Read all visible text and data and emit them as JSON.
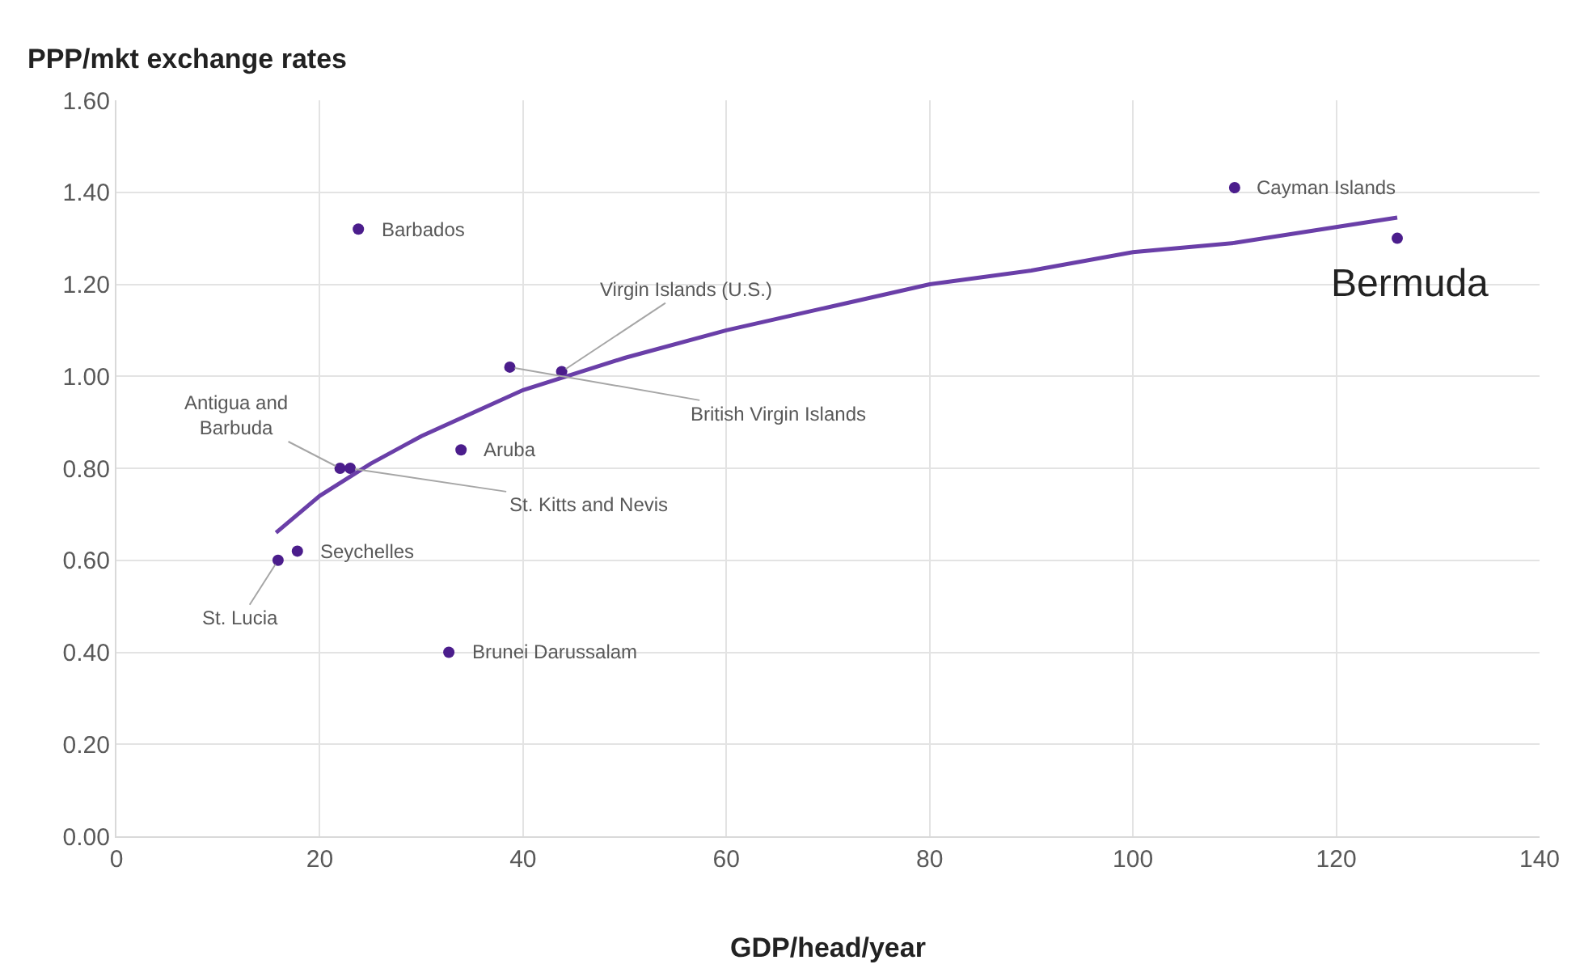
{
  "chart_data": {
    "type": "scatter",
    "ylabel": "PPP/mkt exchange rates",
    "xlabel": "GDP/head/year",
    "series": [
      {
        "color": "#4b1d8c",
        "marker": "circle",
        "x": [
          23.8,
          43.8,
          38.7,
          33.9,
          22.0,
          23.0,
          17.8,
          15.9,
          32.7,
          110.0,
          126.0
        ],
        "values": [
          1.32,
          1.01,
          1.02,
          0.84,
          0.8,
          0.8,
          0.62,
          0.6,
          0.4,
          1.41,
          1.3
        ]
      },
      {
        "type": "line",
        "color": "#6a3fa8",
        "marker": "none",
        "x": [
          15.7,
          20,
          25,
          30,
          40,
          50,
          60,
          70,
          80,
          90,
          100,
          110,
          126
        ],
        "values": [
          0.66,
          0.74,
          0.81,
          0.87,
          0.97,
          1.04,
          1.1,
          1.15,
          1.2,
          1.23,
          1.27,
          1.29,
          1.345
        ]
      }
    ],
    "annotations": [
      {
        "text": "Barbados",
        "x": 23.8,
        "y": 1.32
      },
      {
        "text": "Virgin Islands (U.S.)",
        "x": 43.8,
        "y": 1.01
      },
      {
        "text": "British Virgin Islands",
        "x": 38.7,
        "y": 1.02
      },
      {
        "text": "Aruba",
        "x": 33.9,
        "y": 0.84
      },
      {
        "text": "Antigua and\nBarbuda",
        "x": 22.0,
        "y": 0.8
      },
      {
        "text": "St. Kitts and Nevis",
        "x": 23.0,
        "y": 0.8
      },
      {
        "text": "Seychelles",
        "x": 17.8,
        "y": 0.62
      },
      {
        "text": "St. Lucia",
        "x": 15.9,
        "y": 0.6
      },
      {
        "text": "Brunei Darussalam",
        "x": 32.7,
        "y": 0.4
      },
      {
        "text": "Cayman Islands",
        "x": 110.0,
        "y": 1.41
      },
      {
        "text": "Bermuda",
        "x": 126.0,
        "y": 1.3
      }
    ],
    "xlim": [
      0,
      140
    ],
    "xticks": [
      0,
      20,
      40,
      60,
      80,
      100,
      120,
      140
    ],
    "ylim": [
      0,
      1.6
    ],
    "yticks": [
      {
        "value": 0,
        "label": "0.00"
      },
      {
        "value": 0.2,
        "label": "0.20"
      },
      {
        "value": 0.4,
        "label": "0.40"
      },
      {
        "value": 0.6,
        "label": "0.60"
      },
      {
        "value": 0.8,
        "label": "0.80"
      },
      {
        "value": 1.0,
        "label": "1.00"
      },
      {
        "value": 1.2,
        "label": "1.20"
      },
      {
        "value": 1.4,
        "label": "1.40"
      },
      {
        "value": 1.6,
        "label": "1.60"
      }
    ],
    "grid": true
  }
}
